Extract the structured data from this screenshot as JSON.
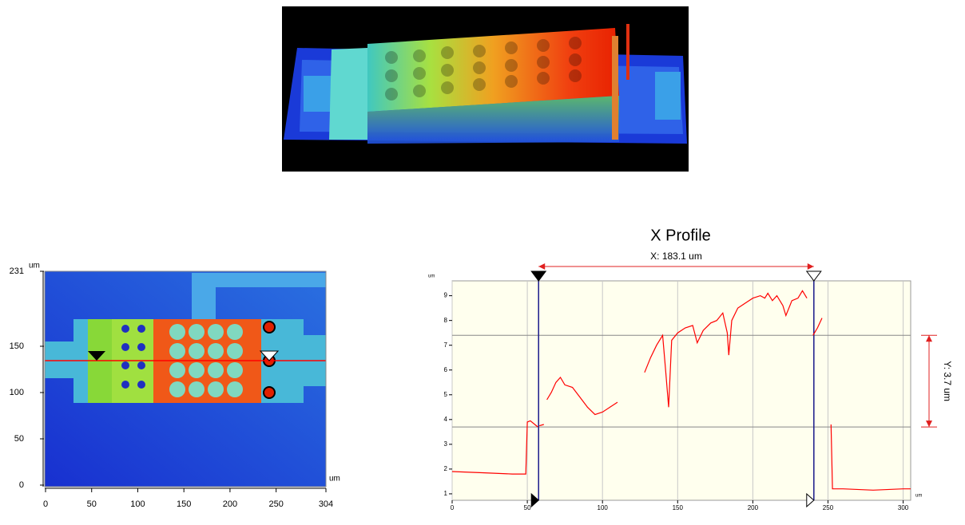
{
  "chart_data": [
    {
      "type": "image",
      "x_unit": "um",
      "y_unit": "um",
      "xlim": [
        0,
        304
      ],
      "xticks": [
        0,
        50,
        100,
        150,
        200,
        250,
        304
      ],
      "ylim": [
        0,
        231
      ],
      "yticks": [
        0,
        50,
        100,
        150,
        231
      ]
    },
    {
      "type": "line",
      "title": "X Profile",
      "x_unit": "um",
      "y_unit": "um",
      "x": [
        0,
        20,
        40,
        49,
        50,
        52,
        55,
        57,
        57.6,
        58,
        61,
        62,
        63,
        66,
        69,
        72,
        75,
        80,
        85,
        90,
        95,
        100,
        105,
        110,
        120,
        128,
        132,
        136,
        140,
        142,
        144,
        146,
        150,
        155,
        160,
        163,
        167,
        172,
        176,
        180,
        183,
        184,
        186,
        190,
        195,
        200,
        205,
        208,
        210,
        213,
        216,
        220,
        222,
        226,
        230,
        233,
        236,
        238,
        240,
        243,
        246,
        249,
        252,
        253,
        260,
        280,
        300,
        305
      ],
      "series": [
        {
          "color": "#ff0000",
          "values": [
            1.9,
            1.85,
            1.8,
            1.8,
            3.9,
            3.95,
            3.8,
            3.7,
            null,
            3.75,
            3.8,
            null,
            4.8,
            5.1,
            5.5,
            5.7,
            5.4,
            5.3,
            4.9,
            4.5,
            4.2,
            4.3,
            4.5,
            4.7,
            null,
            5.9,
            6.5,
            7.0,
            7.4,
            6.0,
            4.5,
            7.2,
            7.5,
            7.7,
            7.8,
            7.1,
            7.6,
            7.9,
            8.0,
            8.3,
            7.5,
            6.6,
            8.0,
            8.5,
            8.7,
            8.9,
            9.0,
            8.9,
            9.1,
            8.8,
            9.0,
            8.6,
            8.2,
            8.8,
            8.9,
            9.2,
            8.9,
            null,
            7.4,
            7.7,
            8.1,
            null,
            3.8,
            1.2,
            1.2,
            1.15,
            1.2,
            1.2
          ]
        }
      ],
      "xlim": [
        0,
        305
      ],
      "xticks": [
        0,
        50,
        100,
        150,
        200,
        250,
        300
      ],
      "ylim": [
        0.74,
        9.6
      ],
      "yticks": [
        1,
        2,
        3,
        4,
        5,
        6,
        7,
        8,
        9
      ],
      "grid": true,
      "cursor_x": [
        57.5,
        240.6
      ],
      "cursor_y": [
        3.7,
        7.4
      ],
      "x_annotation": "X: 183.1 um",
      "y_annotation": "Y: 3.7 um"
    }
  ]
}
